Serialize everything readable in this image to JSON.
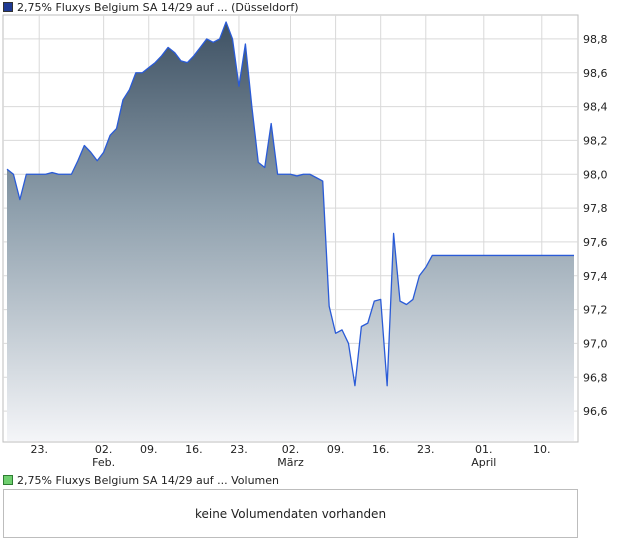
{
  "price_legend": {
    "label": "2,75% Fluxys Belgium SA 14/29 auf ... (Düsseldorf)",
    "color": "#1f3a93"
  },
  "volume_legend": {
    "label": "2,75% Fluxys Belgium SA 14/29 auf ... Volumen",
    "color": "#6fcf6f"
  },
  "volume_panel": {
    "message": "keine Volumendaten vorhanden"
  },
  "chart_data": {
    "type": "area",
    "title": "",
    "xlabel": "",
    "ylabel": "",
    "ylim": [
      96.5,
      98.9
    ],
    "y_ticks": [
      96.6,
      96.8,
      97.0,
      97.2,
      97.4,
      97.6,
      97.8,
      98.0,
      98.2,
      98.4,
      98.6,
      98.8
    ],
    "y_tick_labels": [
      "96,6",
      "96,8",
      "97,0",
      "97,2",
      "97,4",
      "97,6",
      "97,8",
      "98,0",
      "98,2",
      "98,4",
      "98,6",
      "98,8"
    ],
    "x_ticks": [
      {
        "date": "2024-01-23",
        "label": "23.",
        "sublabel": ""
      },
      {
        "date": "2024-02-02",
        "label": "02.",
        "sublabel": "Feb."
      },
      {
        "date": "2024-02-09",
        "label": "09.",
        "sublabel": ""
      },
      {
        "date": "2024-02-16",
        "label": "16.",
        "sublabel": ""
      },
      {
        "date": "2024-02-23",
        "label": "23.",
        "sublabel": ""
      },
      {
        "date": "2024-03-02",
        "label": "02.",
        "sublabel": "März"
      },
      {
        "date": "2024-03-09",
        "label": "09.",
        "sublabel": ""
      },
      {
        "date": "2024-03-16",
        "label": "16.",
        "sublabel": ""
      },
      {
        "date": "2024-03-23",
        "label": "23.",
        "sublabel": ""
      },
      {
        "date": "2024-04-01",
        "label": "01.",
        "sublabel": "April"
      },
      {
        "date": "2024-04-10",
        "label": "10.",
        "sublabel": ""
      }
    ],
    "grid": true,
    "series": [
      {
        "color": "#2a5bd7",
        "x": [
          "2024-01-18",
          "2024-01-19",
          "2024-01-20",
          "2024-01-21",
          "2024-01-22",
          "2024-01-23",
          "2024-01-24",
          "2024-01-25",
          "2024-01-26",
          "2024-01-27",
          "2024-01-28",
          "2024-01-29",
          "2024-01-30",
          "2024-01-31",
          "2024-02-01",
          "2024-02-02",
          "2024-02-03",
          "2024-02-04",
          "2024-02-05",
          "2024-02-06",
          "2024-02-07",
          "2024-02-08",
          "2024-02-09",
          "2024-02-10",
          "2024-02-11",
          "2024-02-12",
          "2024-02-13",
          "2024-02-14",
          "2024-02-15",
          "2024-02-16",
          "2024-02-17",
          "2024-02-18",
          "2024-02-19",
          "2024-02-20",
          "2024-02-21",
          "2024-02-22",
          "2024-02-23",
          "2024-02-24",
          "2024-02-25",
          "2024-02-26",
          "2024-02-27",
          "2024-02-28",
          "2024-02-29",
          "2024-03-01",
          "2024-03-02",
          "2024-03-03",
          "2024-03-04",
          "2024-03-05",
          "2024-03-06",
          "2024-03-07",
          "2024-03-08",
          "2024-03-09",
          "2024-03-10",
          "2024-03-11",
          "2024-03-12",
          "2024-03-13",
          "2024-03-14",
          "2024-03-15",
          "2024-03-16",
          "2024-03-17",
          "2024-03-18",
          "2024-03-19",
          "2024-03-20",
          "2024-03-21",
          "2024-03-22",
          "2024-03-23",
          "2024-03-24",
          "2024-03-25",
          "2024-03-26",
          "2024-03-27",
          "2024-03-28",
          "2024-03-29",
          "2024-03-30",
          "2024-03-31",
          "2024-04-01",
          "2024-04-02",
          "2024-04-03",
          "2024-04-04",
          "2024-04-05",
          "2024-04-06",
          "2024-04-07",
          "2024-04-08",
          "2024-04-09",
          "2024-04-10",
          "2024-04-11",
          "2024-04-12",
          "2024-04-13",
          "2024-04-14",
          "2024-04-15"
        ],
        "values": [
          98.03,
          98.0,
          97.85,
          98.0,
          98.0,
          98.0,
          98.0,
          98.01,
          98.0,
          98.0,
          98.0,
          98.08,
          98.17,
          98.13,
          98.08,
          98.13,
          98.23,
          98.27,
          98.44,
          98.5,
          98.6,
          98.6,
          98.63,
          98.66,
          98.7,
          98.75,
          98.72,
          98.67,
          98.66,
          98.7,
          98.75,
          98.8,
          98.78,
          98.8,
          98.9,
          98.8,
          98.52,
          98.77,
          98.4,
          98.07,
          98.04,
          98.3,
          98.0,
          98.0,
          98.0,
          97.99,
          98.0,
          98.0,
          97.98,
          97.96,
          97.22,
          97.06,
          97.08,
          97.0,
          96.75,
          97.1,
          97.12,
          97.25,
          97.26,
          96.75,
          97.65,
          97.25,
          97.23,
          97.26,
          97.4,
          97.45,
          97.52,
          97.52,
          97.52,
          97.52,
          97.52,
          97.52,
          97.52,
          97.52,
          97.52,
          97.52,
          97.52,
          97.52,
          97.52,
          97.52,
          97.52,
          97.52,
          97.52,
          97.52,
          97.52,
          97.52,
          97.52,
          97.52,
          97.52
        ]
      }
    ]
  }
}
